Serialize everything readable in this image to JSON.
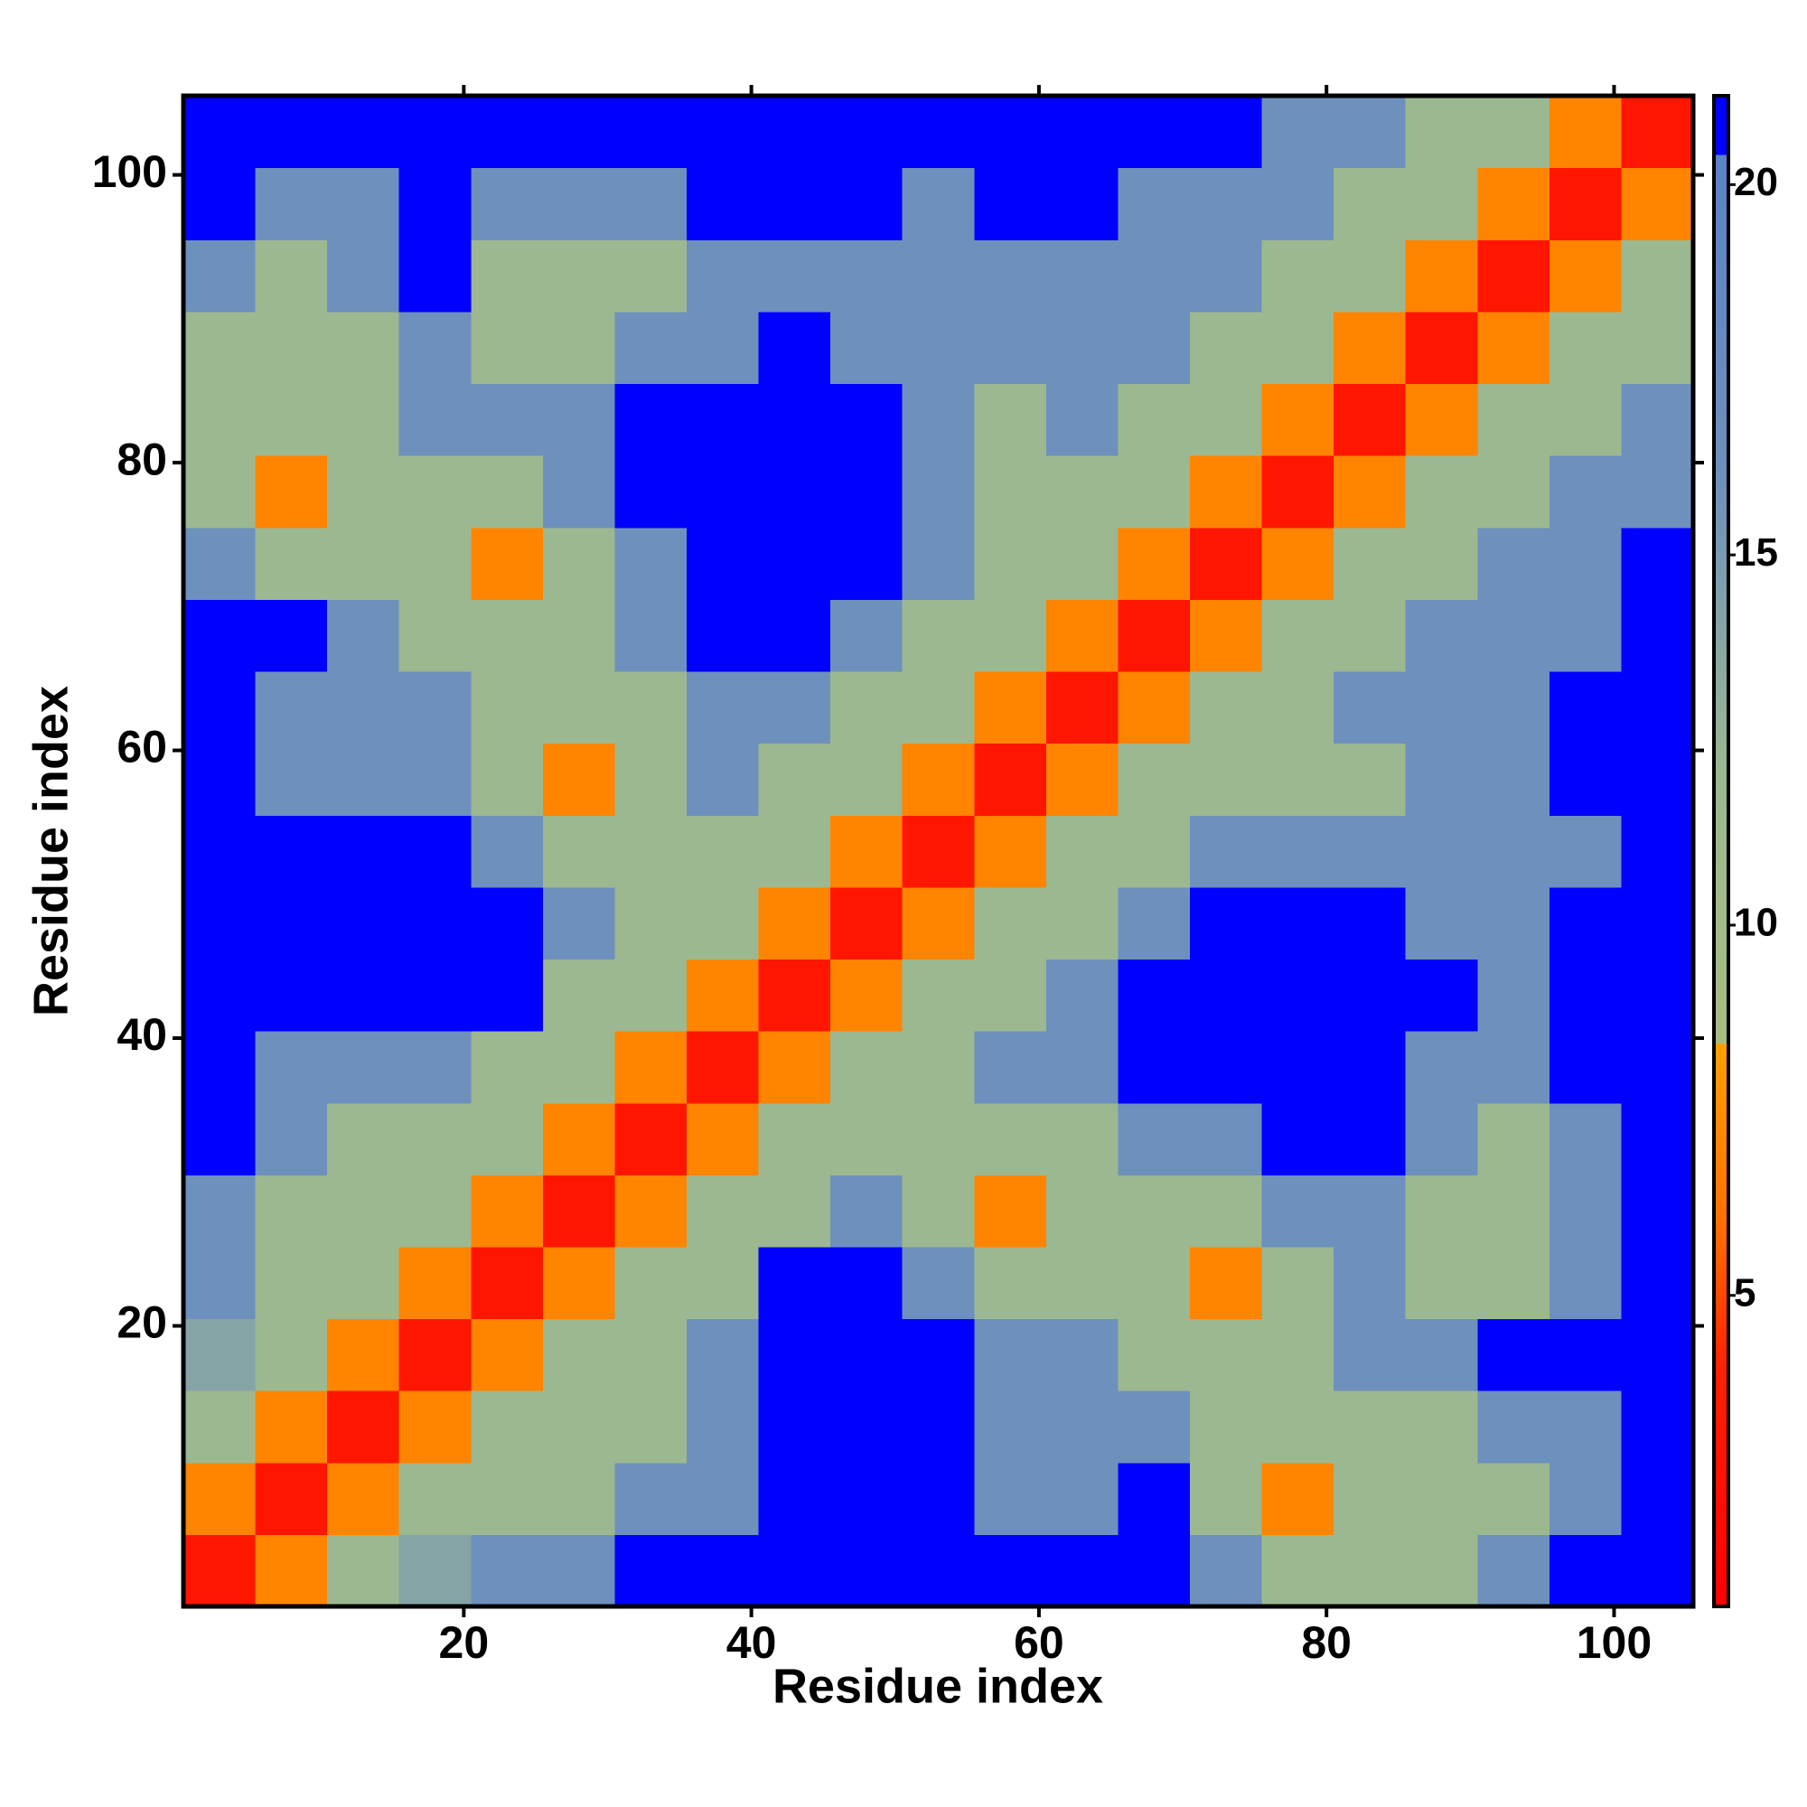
{
  "chart_data": {
    "type": "heatmap",
    "x_label": "Residue index",
    "y_label": "Residue index",
    "x": [
      3,
      8,
      13,
      18,
      23,
      28,
      33,
      38,
      43,
      48,
      53,
      58,
      63,
      68,
      73,
      78,
      83,
      88,
      93,
      98,
      103
    ],
    "y": [
      3,
      8,
      13,
      18,
      23,
      28,
      33,
      38,
      43,
      48,
      53,
      58,
      63,
      68,
      73,
      78,
      83,
      88,
      93,
      98,
      103
    ],
    "z": [
      [
        3,
        7,
        12,
        14,
        16,
        16,
        21,
        21,
        21,
        21,
        21,
        21,
        21,
        21,
        16,
        12,
        12,
        12,
        16,
        21,
        21
      ],
      [
        7,
        3,
        7,
        12,
        12,
        12,
        16,
        16,
        21,
        21,
        21,
        16,
        16,
        21,
        12,
        7,
        12,
        12,
        12,
        16,
        21
      ],
      [
        12,
        7,
        3,
        7,
        12,
        12,
        12,
        16,
        21,
        21,
        21,
        16,
        16,
        16,
        12,
        12,
        12,
        12,
        16,
        16,
        21
      ],
      [
        14,
        12,
        7,
        3,
        7,
        12,
        12,
        16,
        21,
        21,
        21,
        16,
        16,
        12,
        12,
        12,
        16,
        16,
        21,
        21,
        21
      ],
      [
        16,
        12,
        12,
        7,
        3,
        7,
        12,
        12,
        21,
        21,
        16,
        12,
        12,
        12,
        7,
        12,
        16,
        12,
        12,
        16,
        21
      ],
      [
        16,
        12,
        12,
        12,
        7,
        3,
        7,
        12,
        12,
        16,
        12,
        7,
        12,
        12,
        12,
        16,
        16,
        12,
        12,
        16,
        21
      ],
      [
        21,
        16,
        12,
        12,
        12,
        7,
        3,
        7,
        12,
        12,
        12,
        12,
        12,
        16,
        16,
        21,
        21,
        16,
        12,
        16,
        21
      ],
      [
        21,
        16,
        16,
        16,
        12,
        12,
        7,
        3,
        7,
        12,
        12,
        16,
        16,
        21,
        21,
        21,
        21,
        16,
        16,
        21,
        21
      ],
      [
        21,
        21,
        21,
        21,
        21,
        12,
        12,
        7,
        3,
        7,
        12,
        12,
        16,
        21,
        21,
        21,
        21,
        21,
        16,
        21,
        21
      ],
      [
        21,
        21,
        21,
        21,
        21,
        16,
        12,
        12,
        7,
        3,
        7,
        12,
        12,
        16,
        21,
        21,
        21,
        16,
        16,
        21,
        21
      ],
      [
        21,
        21,
        21,
        21,
        16,
        12,
        12,
        12,
        12,
        7,
        3,
        7,
        12,
        12,
        16,
        16,
        16,
        16,
        16,
        16,
        21
      ],
      [
        21,
        16,
        16,
        16,
        12,
        7,
        12,
        16,
        12,
        12,
        7,
        3,
        7,
        12,
        12,
        12,
        12,
        16,
        16,
        21,
        21
      ],
      [
        21,
        16,
        16,
        16,
        12,
        12,
        12,
        16,
        16,
        12,
        12,
        7,
        3,
        7,
        12,
        12,
        16,
        16,
        16,
        21,
        21
      ],
      [
        21,
        21,
        16,
        12,
        12,
        12,
        16,
        21,
        21,
        16,
        12,
        12,
        7,
        3,
        7,
        12,
        12,
        16,
        16,
        16,
        21
      ],
      [
        16,
        12,
        12,
        12,
        7,
        12,
        16,
        21,
        21,
        21,
        16,
        12,
        12,
        7,
        3,
        7,
        12,
        12,
        16,
        16,
        21
      ],
      [
        12,
        7,
        12,
        12,
        12,
        16,
        21,
        21,
        21,
        21,
        16,
        12,
        12,
        12,
        7,
        3,
        7,
        12,
        12,
        16,
        16
      ],
      [
        12,
        12,
        12,
        16,
        16,
        16,
        21,
        21,
        21,
        21,
        16,
        12,
        16,
        12,
        12,
        7,
        3,
        7,
        12,
        12,
        16
      ],
      [
        12,
        12,
        12,
        16,
        12,
        12,
        16,
        16,
        21,
        16,
        16,
        16,
        16,
        16,
        12,
        12,
        7,
        3,
        7,
        12,
        12
      ],
      [
        16,
        12,
        16,
        21,
        12,
        12,
        12,
        16,
        16,
        16,
        16,
        16,
        16,
        16,
        16,
        12,
        12,
        7,
        3,
        7,
        12
      ],
      [
        21,
        16,
        16,
        21,
        16,
        16,
        16,
        21,
        21,
        21,
        16,
        21,
        21,
        16,
        16,
        16,
        12,
        12,
        7,
        3,
        7
      ],
      [
        21,
        21,
        21,
        21,
        21,
        21,
        21,
        21,
        21,
        21,
        21,
        21,
        21,
        21,
        21,
        16,
        16,
        12,
        12,
        7,
        3
      ]
    ],
    "xlim": [
      0.5,
      105.5
    ],
    "ylim": [
      0.5,
      105.5
    ],
    "xticks": [
      20,
      40,
      60,
      80,
      100
    ],
    "yticks": [
      20,
      40,
      60,
      80,
      100
    ],
    "zlim": [
      0.8,
      21.2
    ],
    "zticks": [
      5,
      10,
      15,
      20
    ],
    "colorscale": [
      [
        0.8,
        "#ff0000"
      ],
      [
        4,
        "#ff2000"
      ],
      [
        6,
        "#ff7000"
      ],
      [
        8.4,
        "#ffa000"
      ],
      [
        8.4,
        "#a8bc80"
      ],
      [
        12,
        "#9cb890"
      ],
      [
        16,
        "#6e90bc"
      ],
      [
        20.4,
        "#5b82c8"
      ],
      [
        20.4,
        "#0000ff"
      ],
      [
        21.2,
        "#0000ff"
      ]
    ]
  }
}
